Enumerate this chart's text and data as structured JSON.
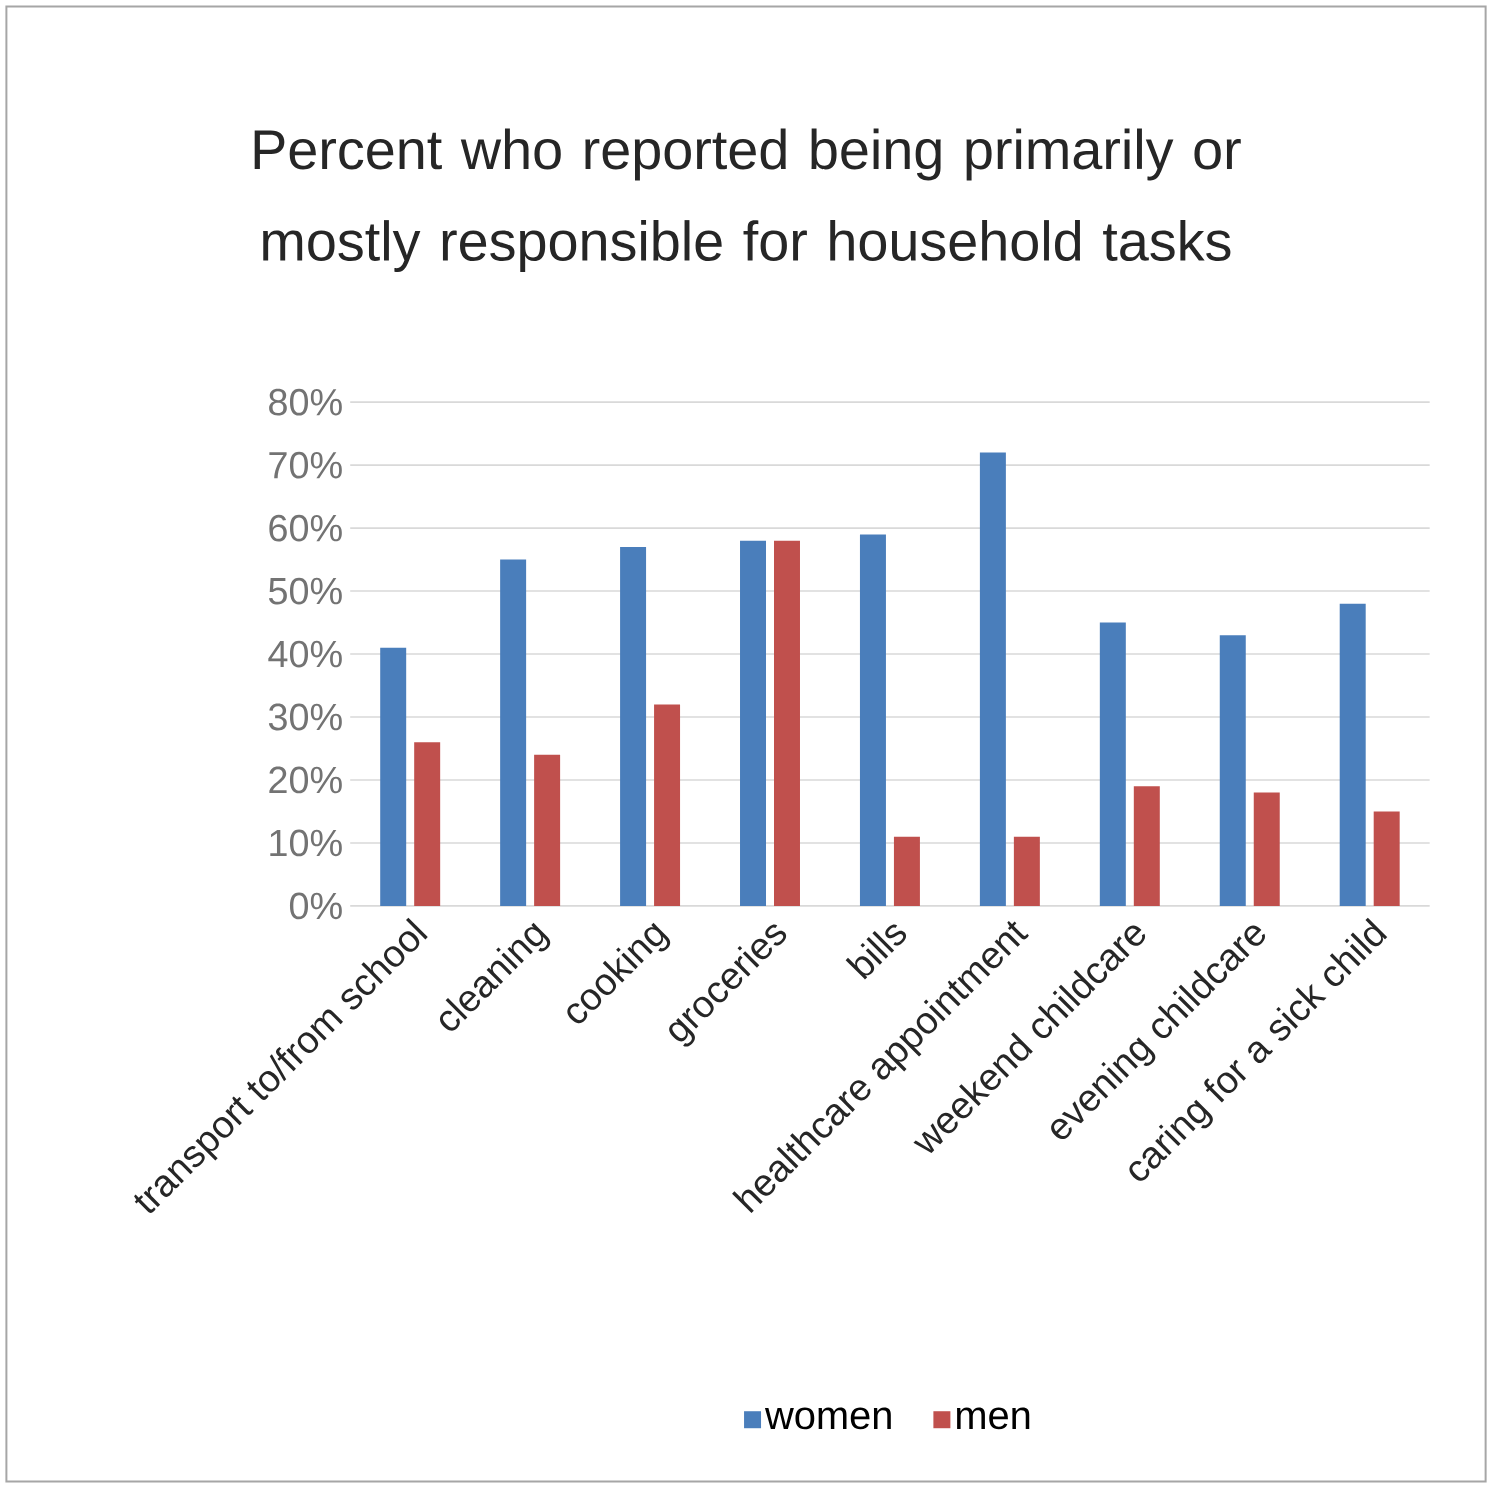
{
  "chart_data": {
    "type": "bar",
    "title": "Percent who reported being primarily or mostly responsible for household tasks",
    "categories": [
      "transport to/from school",
      "cleaning",
      "cooking",
      "groceries",
      "bills",
      "healthcare appointment",
      "weekend childcare",
      "evening childcare",
      "caring for a sick child"
    ],
    "series": [
      {
        "name": "women",
        "color": "#4a7ebb",
        "values": [
          41,
          55,
          57,
          58,
          59,
          72,
          45,
          43,
          48
        ]
      },
      {
        "name": "men",
        "color": "#c0504d",
        "values": [
          26,
          24,
          32,
          58,
          11,
          11,
          19,
          18,
          15
        ]
      }
    ],
    "ylim": [
      0,
      80
    ],
    "yticks": [
      {
        "value": 0,
        "label": "0%"
      },
      {
        "value": 10,
        "label": "10%"
      },
      {
        "value": 20,
        "label": "20%"
      },
      {
        "value": 30,
        "label": "30%"
      },
      {
        "value": 40,
        "label": "40%"
      },
      {
        "value": 50,
        "label": "50%"
      },
      {
        "value": 60,
        "label": "60%"
      },
      {
        "value": 70,
        "label": "70%"
      },
      {
        "value": 80,
        "label": "80%"
      }
    ],
    "grid": "y",
    "legend": "bottom"
  }
}
